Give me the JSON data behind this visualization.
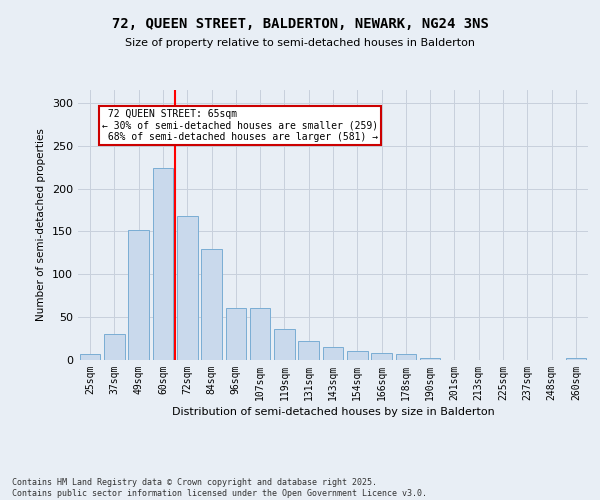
{
  "title1": "72, QUEEN STREET, BALDERTON, NEWARK, NG24 3NS",
  "title2": "Size of property relative to semi-detached houses in Balderton",
  "xlabel": "Distribution of semi-detached houses by size in Balderton",
  "ylabel": "Number of semi-detached properties",
  "categories": [
    "25sqm",
    "37sqm",
    "49sqm",
    "60sqm",
    "72sqm",
    "84sqm",
    "96sqm",
    "107sqm",
    "119sqm",
    "131sqm",
    "143sqm",
    "154sqm",
    "166sqm",
    "178sqm",
    "190sqm",
    "201sqm",
    "213sqm",
    "225sqm",
    "237sqm",
    "248sqm",
    "260sqm"
  ],
  "values": [
    7,
    30,
    152,
    224,
    168,
    130,
    61,
    61,
    36,
    22,
    15,
    10,
    8,
    7,
    2,
    0,
    0,
    0,
    0,
    0,
    2
  ],
  "bar_color": "#c9d9ec",
  "bar_edge_color": "#7aadd4",
  "redline_index": 3,
  "redline_label": "72 QUEEN STREET: 65sqm",
  "smaller_pct": "30%",
  "smaller_count": 259,
  "larger_pct": "68%",
  "larger_count": 581,
  "annotation_box_color": "#ffffff",
  "annotation_box_edge": "#cc0000",
  "grid_color": "#c8d0dc",
  "background_color": "#e8eef5",
  "footer": "Contains HM Land Registry data © Crown copyright and database right 2025.\nContains public sector information licensed under the Open Government Licence v3.0.",
  "ylim": [
    0,
    315
  ],
  "yticks": [
    0,
    50,
    100,
    150,
    200,
    250,
    300
  ]
}
